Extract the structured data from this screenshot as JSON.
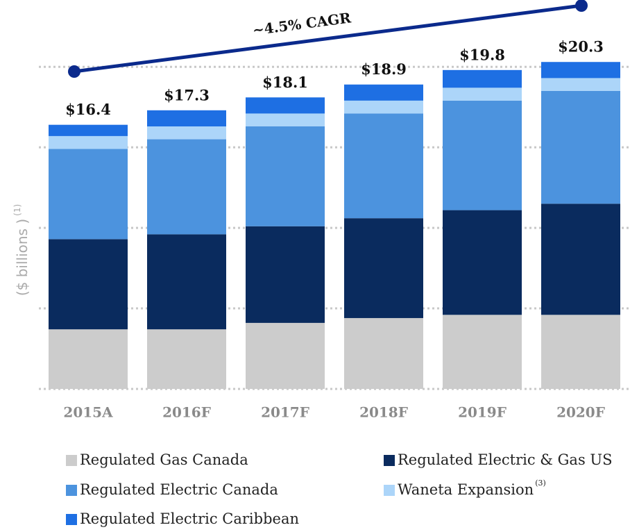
{
  "chart_data": {
    "type": "stacked_bar",
    "annotation": "~4.5% CAGR",
    "y_label": "($ billions )",
    "y_label_note": "(1)",
    "categories": [
      "2015A",
      "2016F",
      "2017F",
      "2018F",
      "2019F",
      "2020F"
    ],
    "series": [
      {
        "name": "Regulated Gas Canada",
        "color": "#cccccc",
        "values": [
          3.7,
          3.7,
          4.1,
          4.4,
          4.6,
          4.6
        ]
      },
      {
        "name": "Regulated Electric & Gas US",
        "color": "#0a2b5e",
        "values": [
          5.6,
          5.9,
          6.0,
          6.2,
          6.5,
          6.9
        ]
      },
      {
        "name": "Regulated Electric Canada",
        "color": "#4c93de",
        "values": [
          5.6,
          5.9,
          6.2,
          6.5,
          6.8,
          7.0
        ]
      },
      {
        "name": "Waneta Expansion",
        "note": "(3)",
        "color": "#acd5f9",
        "values": [
          0.8,
          0.8,
          0.8,
          0.8,
          0.8,
          0.8
        ]
      },
      {
        "name": "Regulated Electric Caribbean",
        "color": "#1e6fe3",
        "values": [
          0.7,
          1.0,
          1.0,
          1.0,
          1.1,
          1.0
        ]
      }
    ],
    "totals": [
      16.4,
      17.3,
      18.1,
      18.9,
      19.8,
      20.3
    ],
    "total_labels": [
      "$16.4",
      "$17.3",
      "$18.1",
      "$18.9",
      "$19.8",
      "$20.3"
    ],
    "ylim": [
      0,
      21
    ],
    "yticks": [
      0,
      5,
      10,
      15,
      20
    ],
    "grid": true
  }
}
